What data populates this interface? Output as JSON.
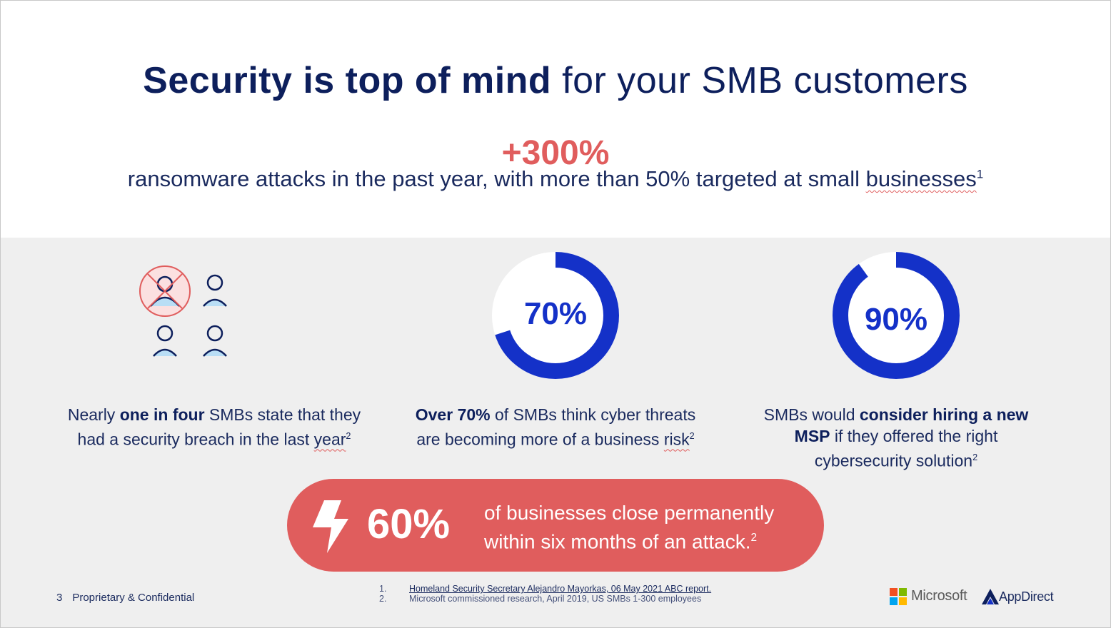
{
  "header": {
    "title_bold": "Security is top of mind",
    "title_light": " for your SMB customers"
  },
  "hero": {
    "stat": "+300%",
    "desc_main": "ransomware attacks in the past year, with more than 50% targeted at small ",
    "desc_squiggle": "businesses",
    "desc_sup": "1"
  },
  "stats": [
    {
      "icon": "people-breach-icon",
      "caption_pre": "Nearly ",
      "caption_bold": "one in four",
      "caption_post1": " SMBs state that they",
      "caption_line2": "had a security breach in the last ",
      "caption_squiggle": "year",
      "sup": "2"
    },
    {
      "donut_label": "70%",
      "percent": 70,
      "caption_bold": "Over 70%",
      "caption_post1": " of SMBs think cyber threats",
      "caption_line2": "are becoming more of a business ",
      "caption_squiggle": "risk",
      "sup": "2"
    },
    {
      "donut_label": "90%",
      "percent": 90,
      "caption_pre": "SMBs would ",
      "caption_bold": "consider hiring a new",
      "caption_bold2": "MSP",
      "caption_post1": " if they offered the right",
      "caption_line3": "cybersecurity solution",
      "sup": "2"
    }
  ],
  "callout": {
    "icon": "lightning-bolt-icon",
    "stat": "60%",
    "line1": "of businesses close permanently",
    "line2": "within six months of an attack.",
    "sup": "2"
  },
  "footer": {
    "page_number": "3",
    "confidential": "Proprietary & Confidential",
    "references": [
      {
        "num": "1.",
        "text": "Homeland Security Secretary Alejandro Mayorkas, 06 May 2021 ABC report."
      },
      {
        "num": "2.",
        "text": "Microsoft commissioned research, April 2019, US SMBs 1-300 employees"
      }
    ],
    "logo_microsoft": "Microsoft",
    "logo_appdirect": "AppDirect"
  },
  "colors": {
    "navy": "#0d1f5c",
    "coral": "#e05d5d",
    "blue": "#1431c8",
    "band": "#efefef"
  }
}
